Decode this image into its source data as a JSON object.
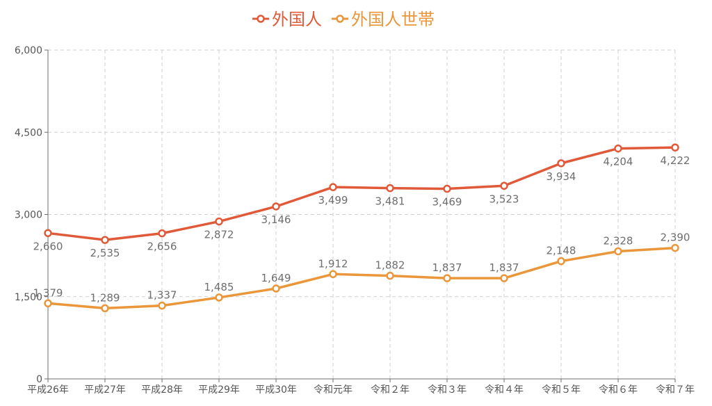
{
  "chart_data": {
    "type": "line",
    "title": "",
    "xlabel": "",
    "ylabel": "",
    "categories": [
      "平成26年",
      "平成27年",
      "平成28年",
      "平成29年",
      "平成30年",
      "令和元年",
      "令和２年",
      "令和３年",
      "令和４年",
      "令和５年",
      "令和６年",
      "令和７年"
    ],
    "ylim": [
      0,
      6000
    ],
    "yticks": [
      0,
      1500,
      3000,
      4500,
      6000
    ],
    "ytick_labels": [
      "0",
      "1,500",
      "3,000",
      "4,500",
      "6,000"
    ],
    "grid": true,
    "legend_position": "top-center",
    "series": [
      {
        "name": "外国人",
        "color": "#e05a3a",
        "values": [
          2660,
          2535,
          2656,
          2872,
          3146,
          3499,
          3481,
          3469,
          3523,
          3934,
          4204,
          4222
        ],
        "labels": [
          "2,660",
          "2,535",
          "2,656",
          "2,872",
          "3,146",
          "3,499",
          "3,481",
          "3,469",
          "3,523",
          "3,934",
          "4,204",
          "4,222"
        ],
        "label_position": "below"
      },
      {
        "name": "外国人世帯",
        "color": "#ea963a",
        "values": [
          1379,
          1289,
          1337,
          1485,
          1649,
          1912,
          1882,
          1837,
          1837,
          2148,
          2328,
          2390
        ],
        "labels": [
          "1,379",
          "1,289",
          "1,337",
          "1,485",
          "1,649",
          "1,912",
          "1,882",
          "1,837",
          "1,837",
          "2,148",
          "2,328",
          "2,390"
        ],
        "label_position": "above"
      }
    ]
  }
}
